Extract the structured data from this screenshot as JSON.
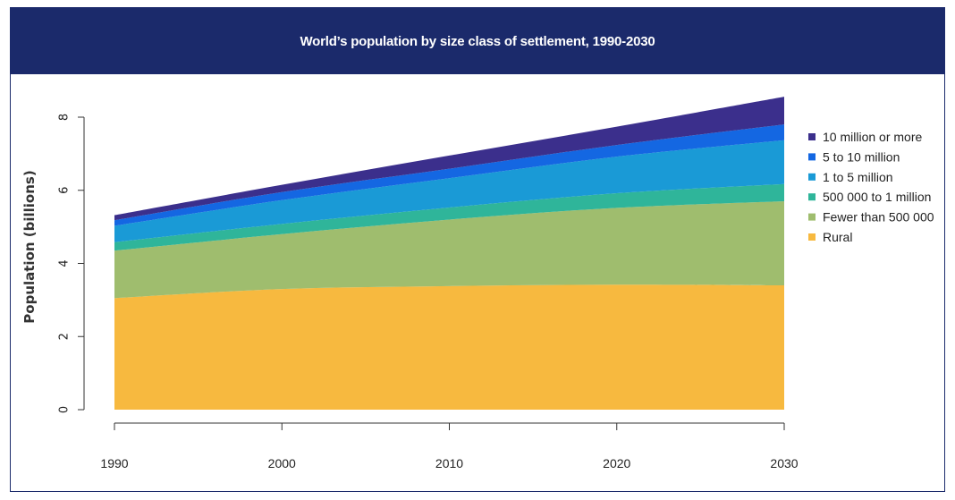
{
  "chart_data": {
    "type": "area",
    "stacked": true,
    "title": "World’s population by size class of settlement, 1990-2030",
    "xlabel": "",
    "ylabel": "Population (billions)",
    "x": [
      1990,
      2000,
      2010,
      2020,
      2030
    ],
    "xticks": [
      "1990",
      "2000",
      "2010",
      "2020",
      "2030"
    ],
    "yticks": [
      "0",
      "2",
      "4",
      "6",
      "8"
    ],
    "ylim": [
      0,
      8
    ],
    "legend_position": "right",
    "series": [
      {
        "name": "Rural",
        "color": "#f7b93f",
        "values": [
          3.05,
          3.3,
          3.38,
          3.42,
          3.4
        ]
      },
      {
        "name": "Fewer than 500 000",
        "color": "#9fbd6e",
        "values": [
          1.3,
          1.5,
          1.82,
          2.1,
          2.3
        ]
      },
      {
        "name": "500 000 to 1 million",
        "color": "#2fb59a",
        "values": [
          0.23,
          0.28,
          0.33,
          0.4,
          0.47
        ]
      },
      {
        "name": "1 to 5 million",
        "color": "#1a9ad6",
        "values": [
          0.45,
          0.65,
          0.8,
          1.0,
          1.2
        ]
      },
      {
        "name": "5 to 10 million",
        "color": "#1467e2",
        "values": [
          0.15,
          0.22,
          0.26,
          0.32,
          0.43
        ]
      },
      {
        "name": "10 million or more",
        "color": "#3b2f8c",
        "values": [
          0.14,
          0.2,
          0.36,
          0.5,
          0.76
        ]
      }
    ],
    "legend_order": [
      "10 million or more",
      "5 to 10 million",
      "1 to 5 million",
      "500 000 to 1 million",
      "Fewer than 500 000",
      "Rural"
    ]
  }
}
